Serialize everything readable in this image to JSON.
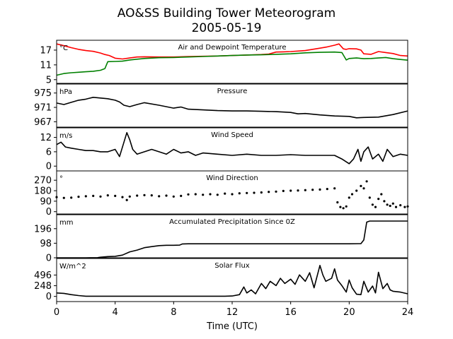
{
  "chart_data": {
    "type": "line",
    "title": "AO&SS Building Tower Meteorogram",
    "subtitle": "2005-05-19",
    "xlabel": "Time (UTC)",
    "x_ticks": [
      "0",
      "4",
      "8",
      "12",
      "16",
      "20",
      "24"
    ],
    "xlim": [
      0,
      24
    ],
    "grid": false,
    "panels": [
      {
        "title": "Air and Dewpoint Temperature",
        "unit": "°C",
        "ylim": [
          3.5,
          21
        ],
        "y_ticks": [
          5,
          11,
          17
        ],
        "y_tick_labels": [
          "5",
          "11",
          "17"
        ],
        "series": [
          {
            "color": "#ff0000",
            "style": "line",
            "x": [
              0,
              0.5,
              1,
              1.5,
              2,
              2.5,
              3,
              3.3,
              3.6,
              4,
              4.5,
              5,
              5.5,
              6,
              7,
              8,
              9,
              10,
              11,
              12,
              13,
              14,
              14.5,
              15,
              15.5,
              16,
              17,
              18,
              18.5,
              19,
              19.3,
              19.6,
              19.8,
              20,
              20.5,
              20.8,
              21,
              21.5,
              22,
              22.5,
              23,
              23.5,
              24
            ],
            "y": [
              19.5,
              18.8,
              18,
              17.3,
              16.8,
              16.5,
              15.8,
              15.2,
              14.8,
              13.7,
              13.4,
              13.8,
              14.2,
              14.3,
              14.2,
              14.2,
              14.4,
              14.5,
              14.6,
              14.8,
              15,
              15.2,
              15.4,
              16.2,
              16.3,
              16.4,
              16.8,
              17.8,
              18.3,
              19,
              19.5,
              17.5,
              17.3,
              17.6,
              17.5,
              17,
              15.5,
              15.3,
              16.4,
              16,
              15.6,
              14.8,
              14.6
            ]
          },
          {
            "color": "#008000",
            "style": "line",
            "x": [
              0,
              0.5,
              1,
              1.5,
              2,
              2.5,
              3,
              3.3,
              3.5,
              4,
              4.5,
              5,
              5.5,
              6,
              7,
              8,
              9,
              10,
              11,
              12,
              13,
              14,
              15,
              16,
              17,
              18,
              19,
              19.5,
              19.8,
              20,
              20.5,
              21,
              21.5,
              22,
              22.5,
              23,
              23.5,
              24
            ],
            "y": [
              6.8,
              7.5,
              7.8,
              8,
              8.2,
              8.4,
              8.8,
              9.5,
              12.3,
              12.4,
              12.5,
              13,
              13.3,
              13.6,
              13.9,
              14,
              14.2,
              14.4,
              14.6,
              14.8,
              15,
              15.1,
              15.3,
              15.5,
              15.9,
              16.1,
              16.2,
              16,
              13,
              13.6,
              13.8,
              13.5,
              13.6,
              13.8,
              14,
              13.5,
              13.2,
              12.9
            ]
          }
        ]
      },
      {
        "title": "Pressure",
        "unit": "hPa",
        "ylim": [
          965.5,
          977.5
        ],
        "y_ticks": [
          967,
          971,
          975
        ],
        "y_tick_labels": [
          "967",
          "971",
          "975"
        ],
        "series": [
          {
            "color": "#000000",
            "style": "line",
            "x": [
              0,
              0.5,
              1,
              1.5,
              2,
              2.5,
              3,
              3.5,
              4,
              4.3,
              4.6,
              5,
              5.5,
              6,
              7,
              8,
              8.5,
              9,
              10,
              11,
              12,
              13,
              14,
              15,
              16,
              16.5,
              17,
              18,
              19,
              20,
              20.5,
              21,
              22,
              23,
              24
            ],
            "y": [
              972.2,
              971.8,
              972.4,
              973,
              973.3,
              973.8,
              973.6,
              973.4,
              973,
              972.5,
              971.6,
              971.2,
              971.8,
              972.3,
              971.6,
              970.8,
              971.1,
              970.5,
              970.3,
              970.1,
              970,
              970,
              969.9,
              969.8,
              969.6,
              969.2,
              969.3,
              968.9,
              968.6,
              968.5,
              968.1,
              968.2,
              968.3,
              969,
              970
            ]
          }
        ]
      },
      {
        "title": "Wind Speed",
        "unit": "m/s",
        "ylim": [
          -2,
          16
        ],
        "y_ticks": [
          0,
          6,
          12
        ],
        "y_tick_labels": [
          "0",
          "6",
          "12"
        ],
        "series": [
          {
            "color": "#000000",
            "style": "line",
            "x": [
              0,
              0.3,
              0.6,
              1,
              1.5,
              2,
              2.5,
              3,
              3.5,
              4,
              4.3,
              4.6,
              4.8,
              5,
              5.2,
              5.5,
              6,
              6.5,
              7,
              7.5,
              8,
              8.5,
              9,
              9.5,
              10,
              11,
              12,
              13,
              14,
              15,
              16,
              17,
              18,
              19,
              19.5,
              20,
              20.3,
              20.6,
              20.8,
              21,
              21.3,
              21.6,
              22,
              22.3,
              22.6,
              23,
              23.5,
              24
            ],
            "y": [
              9,
              10,
              8,
              7.5,
              7,
              6.5,
              6.5,
              6,
              6,
              7,
              4,
              10,
              14,
              11,
              7,
              5,
              6,
              7,
              6,
              5,
              7,
              5.5,
              6,
              4.5,
              5.5,
              5,
              4.5,
              5,
              4.5,
              4.5,
              4.8,
              4.5,
              4.5,
              4.5,
              3,
              1,
              3,
              7,
              2,
              6,
              8,
              3,
              5,
              2,
              7,
              4,
              5,
              4.5
            ]
          }
        ]
      },
      {
        "title": "Wind Direction",
        "unit": "°",
        "ylim": [
          -20,
          350
        ],
        "y_ticks": [
          0,
          90,
          180,
          270
        ],
        "y_tick_labels": [
          "0",
          "90",
          "180",
          "270"
        ],
        "series": [
          {
            "color": "#000000",
            "style": "dots",
            "x": [
              0,
              0.5,
              1,
              1.5,
              2,
              2.5,
              3,
              3.5,
              4,
              4.5,
              4.8,
              5,
              5.5,
              6,
              6.5,
              7,
              7.5,
              8,
              8.5,
              9,
              9.5,
              10,
              10.5,
              11,
              11.5,
              12,
              12.5,
              13,
              13.5,
              14,
              14.5,
              15,
              15.5,
              16,
              16.5,
              17,
              17.5,
              18,
              18.5,
              19,
              19.2,
              19.4,
              19.6,
              19.8,
              20,
              20.2,
              20.5,
              20.8,
              21,
              21.2,
              21.4,
              21.6,
              21.8,
              22,
              22.2,
              22.4,
              22.6,
              22.8,
              23,
              23.2,
              23.5,
              23.8,
              24
            ],
            "y": [
              125,
              118,
              120,
              128,
              132,
              135,
              130,
              140,
              135,
              125,
              100,
              130,
              138,
              142,
              140,
              132,
              138,
              130,
              135,
              148,
              150,
              145,
              150,
              145,
              155,
              150,
              158,
              160,
              162,
              165,
              170,
              172,
              178,
              180,
              182,
              185,
              188,
              190,
              195,
              200,
              80,
              40,
              30,
              45,
              120,
              150,
              180,
              220,
              200,
              260,
              120,
              60,
              40,
              110,
              150,
              90,
              60,
              50,
              70,
              40,
              55,
              40,
              45
            ]
          }
        ]
      },
      {
        "title": "Accumulated Precipitation Since 0Z",
        "unit": "mm",
        "ylim": [
          0,
          290
        ],
        "y_ticks": [
          0,
          98,
          196
        ],
        "y_tick_labels": [
          "0",
          "98",
          "196"
        ],
        "series": [
          {
            "color": "#000000",
            "style": "line",
            "x": [
              0,
              1,
              2,
              2.8,
              3,
              3.5,
              4,
              4.5,
              5,
              5.5,
              6,
              6.5,
              7,
              7.5,
              8,
              8.4,
              8.6,
              9,
              10,
              11,
              12,
              13,
              14,
              15,
              16,
              17,
              18,
              19,
              20,
              20.8,
              21,
              21.2,
              21.4,
              22,
              23,
              24
            ],
            "y": [
              0,
              0,
              0,
              1,
              4,
              8,
              10,
              18,
              40,
              52,
              68,
              75,
              82,
              84,
              84,
              85,
              93,
              94,
              94,
              94,
              94,
              94,
              94,
              94,
              94,
              94,
              94,
              94,
              94,
              95,
              120,
              240,
              247,
              247,
              247,
              247
            ]
          }
        ]
      },
      {
        "title": "Solar Flux",
        "unit": "W/m^2",
        "ylim": [
          -120,
          880
        ],
        "y_ticks": [
          0,
          248,
          496
        ],
        "y_tick_labels": [
          "0",
          "248",
          "496"
        ],
        "series": [
          {
            "color": "#000000",
            "style": "line",
            "x": [
              0,
              0.5,
              1,
              1.5,
              2,
              3,
              4,
              5,
              6,
              7,
              8,
              9,
              10,
              11,
              11.5,
              12,
              12.5,
              12.8,
              13,
              13.3,
              13.6,
              14,
              14.3,
              14.6,
              15,
              15.3,
              15.6,
              16,
              16.3,
              16.6,
              17,
              17.3,
              17.6,
              18,
              18.2,
              18.4,
              18.8,
              19,
              19.2,
              19.5,
              19.8,
              20,
              20.2,
              20.5,
              20.8,
              21,
              21.3,
              21.6,
              21.8,
              22,
              22.3,
              22.6,
              22.8,
              23,
              23.5,
              24
            ],
            "y": [
              80,
              70,
              40,
              20,
              5,
              5,
              5,
              5,
              5,
              5,
              5,
              5,
              5,
              5,
              5,
              10,
              40,
              220,
              80,
              150,
              60,
              300,
              180,
              350,
              250,
              420,
              300,
              400,
              280,
              500,
              350,
              550,
              200,
              720,
              500,
              350,
              420,
              640,
              380,
              250,
              100,
              380,
              200,
              50,
              40,
              350,
              100,
              240,
              80,
              560,
              180,
              300,
              150,
              120,
              100,
              60
            ]
          }
        ]
      }
    ]
  }
}
